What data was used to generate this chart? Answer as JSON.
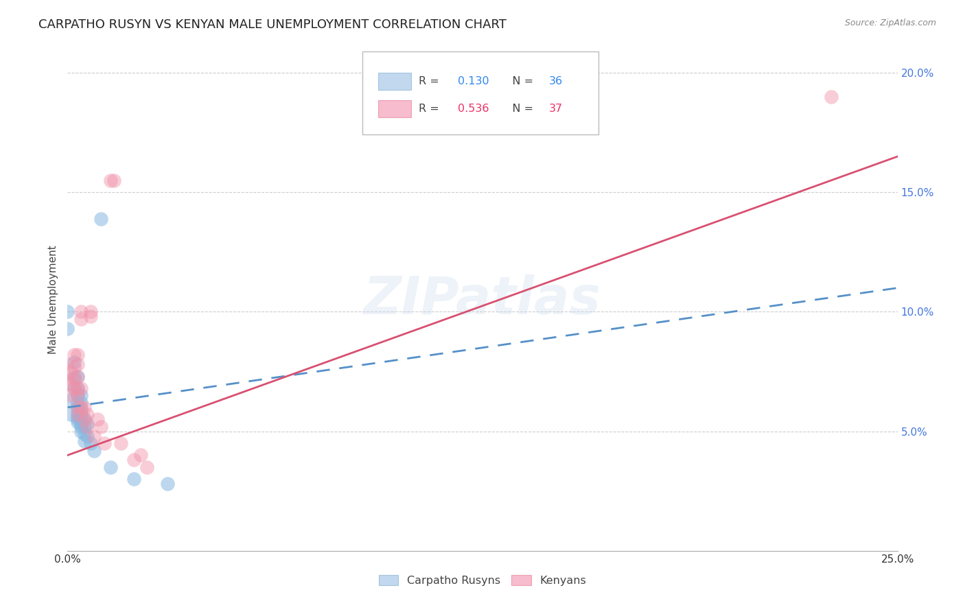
{
  "title": "CARPATHO RUSYN VS KENYAN MALE UNEMPLOYMENT CORRELATION CHART",
  "source": "Source: ZipAtlas.com",
  "ylabel": "Male Unemployment",
  "xlim": [
    0.0,
    0.25
  ],
  "ylim": [
    0.0,
    0.21
  ],
  "xticks": [
    0.0,
    0.05,
    0.1,
    0.15,
    0.2,
    0.25
  ],
  "yticks": [
    0.05,
    0.1,
    0.15,
    0.2
  ],
  "xticklabels": [
    "0.0%",
    "",
    "",
    "",
    "",
    "25.0%"
  ],
  "yticklabels": [
    "5.0%",
    "10.0%",
    "15.0%",
    "20.0%"
  ],
  "blue_scatter": [
    [
      0.0,
      0.1
    ],
    [
      0.0,
      0.093
    ],
    [
      0.001,
      0.063
    ],
    [
      0.001,
      0.057
    ],
    [
      0.002,
      0.079
    ],
    [
      0.002,
      0.073
    ],
    [
      0.002,
      0.068
    ],
    [
      0.003,
      0.073
    ],
    [
      0.003,
      0.068
    ],
    [
      0.003,
      0.065
    ],
    [
      0.003,
      0.062
    ],
    [
      0.003,
      0.06
    ],
    [
      0.003,
      0.058
    ],
    [
      0.003,
      0.056
    ],
    [
      0.003,
      0.055
    ],
    [
      0.003,
      0.054
    ],
    [
      0.004,
      0.065
    ],
    [
      0.004,
      0.062
    ],
    [
      0.004,
      0.059
    ],
    [
      0.004,
      0.057
    ],
    [
      0.004,
      0.055
    ],
    [
      0.004,
      0.053
    ],
    [
      0.004,
      0.052
    ],
    [
      0.004,
      0.05
    ],
    [
      0.005,
      0.055
    ],
    [
      0.005,
      0.052
    ],
    [
      0.005,
      0.049
    ],
    [
      0.005,
      0.046
    ],
    [
      0.006,
      0.053
    ],
    [
      0.006,
      0.048
    ],
    [
      0.007,
      0.045
    ],
    [
      0.008,
      0.042
    ],
    [
      0.01,
      0.139
    ],
    [
      0.013,
      0.035
    ],
    [
      0.02,
      0.03
    ],
    [
      0.03,
      0.028
    ]
  ],
  "pink_scatter": [
    [
      0.0,
      0.078
    ],
    [
      0.0,
      0.072
    ],
    [
      0.001,
      0.075
    ],
    [
      0.001,
      0.07
    ],
    [
      0.001,
      0.065
    ],
    [
      0.002,
      0.082
    ],
    [
      0.002,
      0.077
    ],
    [
      0.002,
      0.072
    ],
    [
      0.002,
      0.068
    ],
    [
      0.003,
      0.082
    ],
    [
      0.003,
      0.078
    ],
    [
      0.003,
      0.073
    ],
    [
      0.003,
      0.068
    ],
    [
      0.003,
      0.065
    ],
    [
      0.003,
      0.06
    ],
    [
      0.003,
      0.057
    ],
    [
      0.004,
      0.1
    ],
    [
      0.004,
      0.097
    ],
    [
      0.004,
      0.068
    ],
    [
      0.004,
      0.06
    ],
    [
      0.005,
      0.06
    ],
    [
      0.005,
      0.055
    ],
    [
      0.006,
      0.057
    ],
    [
      0.006,
      0.052
    ],
    [
      0.007,
      0.1
    ],
    [
      0.007,
      0.098
    ],
    [
      0.008,
      0.048
    ],
    [
      0.009,
      0.055
    ],
    [
      0.01,
      0.052
    ],
    [
      0.011,
      0.045
    ],
    [
      0.013,
      0.155
    ],
    [
      0.014,
      0.155
    ],
    [
      0.016,
      0.045
    ],
    [
      0.02,
      0.038
    ],
    [
      0.022,
      0.04
    ],
    [
      0.024,
      0.035
    ],
    [
      0.23,
      0.19
    ]
  ],
  "blue_line": [
    [
      0.0,
      0.06
    ],
    [
      0.25,
      0.11
    ]
  ],
  "pink_line": [
    [
      0.0,
      0.04
    ],
    [
      0.25,
      0.165
    ]
  ],
  "watermark": "ZIPatlas",
  "background_color": "#ffffff",
  "grid_color": "#cccccc",
  "title_fontsize": 13,
  "axis_fontsize": 11,
  "tick_fontsize": 11,
  "blue_dot_color": "#88b8e0",
  "pink_dot_color": "#f090a8",
  "blue_line_color": "#5590c8",
  "pink_line_color": "#d85070",
  "ytick_color": "#4477dd",
  "xtick_color": "#333333",
  "legend_blue_box": "#a8c8e8",
  "legend_pink_box": "#f4a0b8",
  "legend_blue_r_color": "#3388ee",
  "legend_blue_n_color": "#3388ee",
  "legend_pink_r_color": "#ee3366",
  "legend_pink_n_color": "#ee3366"
}
